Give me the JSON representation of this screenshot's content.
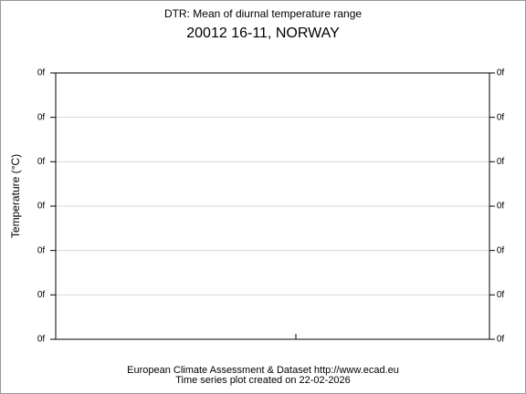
{
  "header": {
    "title": "DTR: Mean of diurnal temperature range",
    "subtitle": "20012 16-11, NORWAY"
  },
  "axis": {
    "y_label": "Temperature (°C)",
    "left_tick_labels": [
      "0f",
      "0f",
      "0f",
      "0f",
      "0f",
      "0f",
      "0f"
    ],
    "right_tick_labels": [
      "0f",
      "0f",
      "0f",
      "0f",
      "0f",
      "0f",
      "0f"
    ]
  },
  "footer": {
    "line1": "European Climate Assessment & Dataset  http://www.ecad.eu",
    "line2": "Time series plot created on 22-02-2026"
  }
}
